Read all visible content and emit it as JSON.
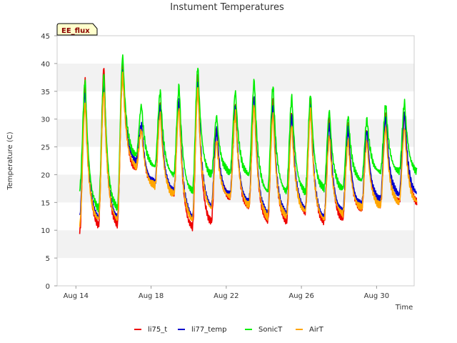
{
  "chart_data": {
    "type": "line",
    "title": "Instument Temperatures",
    "xlabel": "Time",
    "ylabel": "Temperature (C)",
    "badge": "EE_flux",
    "ylim": [
      0,
      45
    ],
    "yticks": [
      0,
      5,
      10,
      15,
      20,
      25,
      30,
      35,
      40,
      45
    ],
    "xlim_days": [
      13.0,
      32.0
    ],
    "xticks": [
      {
        "day": 14,
        "label": "Aug 14"
      },
      {
        "day": 18,
        "label": "Aug 18"
      },
      {
        "day": 22,
        "label": "Aug 22"
      },
      {
        "day": 26,
        "label": "Aug 26"
      },
      {
        "day": 30,
        "label": "Aug 30"
      }
    ],
    "grid": "horizontal bands",
    "legend_position": "bottom",
    "series": [
      {
        "name": "li75_t",
        "color": "#ee0000",
        "day_min": [
          9.5,
          11.0,
          11.0,
          21.0,
          18.0,
          16.5,
          10.5,
          11.5,
          16.0,
          14.0,
          11.5,
          11.5,
          13.5,
          11.5,
          12.0,
          13.5,
          14.5,
          15.0
        ],
        "day_max": [
          37.0,
          39.5,
          40.5,
          29.0,
          32.5,
          33.5,
          37.5,
          28.5,
          32.5,
          34.5,
          33.0,
          31.0,
          33.5,
          30.5,
          29.0,
          28.0,
          30.5,
          31.0
        ]
      },
      {
        "name": "li77_temp",
        "color": "#0000cc",
        "day_min": [
          12.5,
          12.5,
          12.5,
          22.5,
          18.5,
          17.0,
          12.5,
          14.5,
          16.5,
          15.0,
          13.0,
          13.0,
          14.0,
          12.5,
          13.5,
          14.5,
          15.5,
          16.5
        ],
        "day_max": [
          35.0,
          36.5,
          39.0,
          29.0,
          32.5,
          33.5,
          37.0,
          28.0,
          32.0,
          34.0,
          32.5,
          30.5,
          32.5,
          29.0,
          28.5,
          28.0,
          30.5,
          31.0
        ]
      },
      {
        "name": "SonicT",
        "color": "#00ee00",
        "day_min": [
          17.5,
          14.0,
          14.0,
          23.5,
          21.5,
          20.0,
          17.0,
          20.0,
          20.5,
          20.0,
          17.0,
          17.0,
          17.0,
          17.5,
          17.5,
          19.0,
          20.5,
          20.5
        ],
        "day_max": [
          37.0,
          38.0,
          41.5,
          32.5,
          35.0,
          36.0,
          39.5,
          30.5,
          35.0,
          37.0,
          36.0,
          34.0,
          34.5,
          31.5,
          30.5,
          30.0,
          32.5,
          33.0
        ]
      },
      {
        "name": "AirT",
        "color": "#ffa500",
        "day_min": [
          11.0,
          12.0,
          12.0,
          21.5,
          18.0,
          16.5,
          12.0,
          14.0,
          16.0,
          14.5,
          12.5,
          12.5,
          13.5,
          12.0,
          13.0,
          14.0,
          14.5,
          15.0
        ],
        "day_max": [
          33.0,
          35.0,
          38.0,
          28.0,
          31.0,
          32.0,
          35.5,
          26.0,
          31.0,
          32.5,
          31.0,
          29.0,
          31.5,
          27.0,
          26.0,
          26.0,
          28.5,
          28.5
        ]
      }
    ]
  }
}
